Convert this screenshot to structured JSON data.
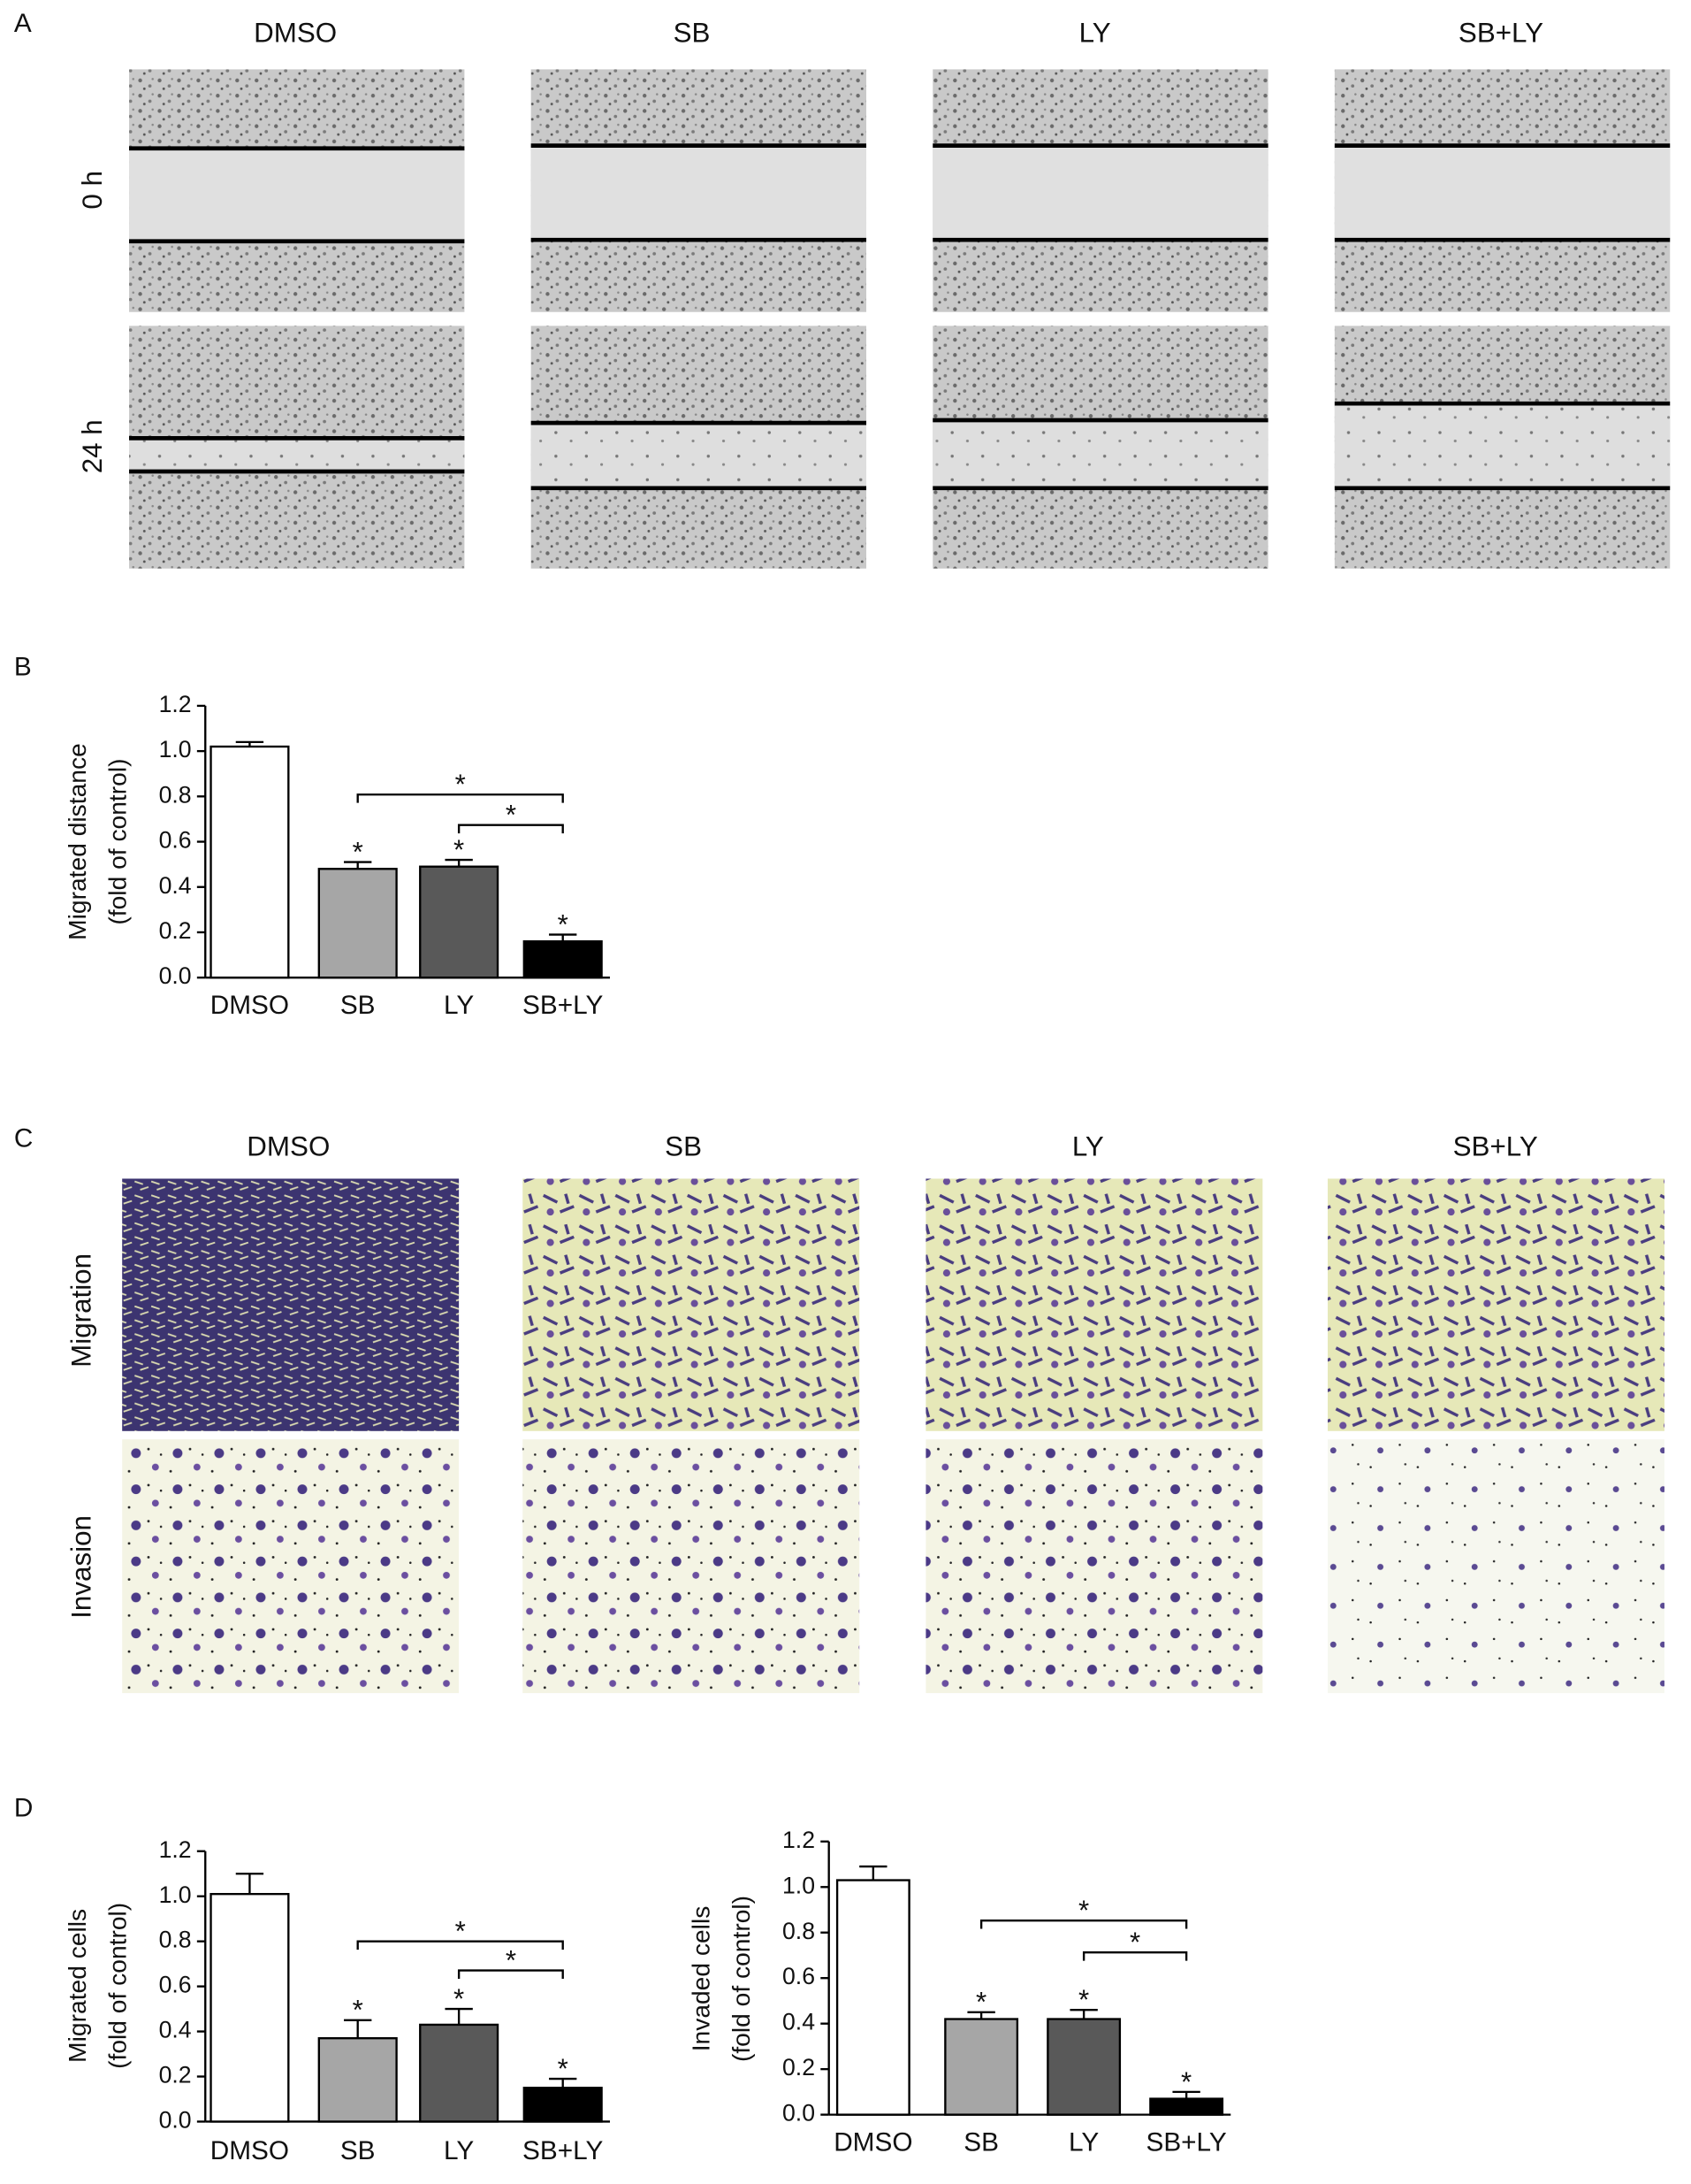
{
  "panels": [
    "A",
    "B",
    "C",
    "D"
  ],
  "wound": {
    "columns": [
      "DMSO",
      "SB",
      "LY",
      "SB+LY"
    ],
    "rows": [
      "0 h",
      "24 h"
    ]
  },
  "transwell": {
    "columns": [
      "DMSO",
      "SB",
      "LY",
      "SB+LY"
    ],
    "rows": [
      "Migration",
      "Invasion"
    ]
  },
  "chart_data": [
    {
      "type": "bar",
      "ylabel": [
        "Migrated distance",
        "(fold of control)"
      ],
      "categories": [
        "DMSO",
        "SB",
        "LY",
        "SB+LY"
      ],
      "values": [
        1.02,
        0.48,
        0.49,
        0.16
      ],
      "errors": [
        0.02,
        0.03,
        0.03,
        0.03
      ],
      "colors": [
        "#ffffff",
        "#a6a6a6",
        "#595959",
        "#000000"
      ],
      "bar_labels": [
        null,
        "*",
        "*",
        "*"
      ],
      "comparison_labels": [
        "*",
        "*"
      ],
      "ylim": [
        0,
        1.2
      ],
      "yticks": [
        {
          "value": 0,
          "label": "0.0"
        },
        {
          "value": 0.2,
          "label": "0.2"
        },
        {
          "value": 0.4,
          "label": "0.4"
        },
        {
          "value": 0.6,
          "label": "0.6"
        },
        {
          "value": 0.8,
          "label": "0.8"
        },
        {
          "value": 1,
          "label": "1.0"
        },
        {
          "value": 1.2,
          "label": "1.2"
        }
      ]
    },
    {
      "type": "bar",
      "ylabel": [
        "Migrated cells",
        "(fold of control)"
      ],
      "categories": [
        "DMSO",
        "SB",
        "LY",
        "SB+LY"
      ],
      "values": [
        1.01,
        0.37,
        0.43,
        0.15
      ],
      "errors": [
        0.09,
        0.08,
        0.07,
        0.04
      ],
      "colors": [
        "#ffffff",
        "#a6a6a6",
        "#595959",
        "#000000"
      ],
      "bar_labels": [
        null,
        "*",
        "*",
        "*"
      ],
      "comparison_labels": [
        "*",
        "*"
      ],
      "ylim": [
        0,
        1.2
      ],
      "yticks": [
        {
          "value": 0,
          "label": "0.0"
        },
        {
          "value": 0.2,
          "label": "0.2"
        },
        {
          "value": 0.4,
          "label": "0.4"
        },
        {
          "value": 0.6,
          "label": "0.6"
        },
        {
          "value": 0.8,
          "label": "0.8"
        },
        {
          "value": 1,
          "label": "1.0"
        },
        {
          "value": 1.2,
          "label": "1.2"
        }
      ]
    },
    {
      "type": "bar",
      "ylabel": [
        "Invaded cells",
        "(fold of control)"
      ],
      "categories": [
        "DMSO",
        "SB",
        "LY",
        "SB+LY"
      ],
      "values": [
        1.03,
        0.42,
        0.42,
        0.07
      ],
      "errors": [
        0.06,
        0.03,
        0.04,
        0.03
      ],
      "colors": [
        "#ffffff",
        "#a6a6a6",
        "#595959",
        "#000000"
      ],
      "bar_labels": [
        null,
        "*",
        "*",
        "*"
      ],
      "comparison_labels": [
        "*",
        "*"
      ],
      "ylim": [
        0,
        1.2
      ],
      "yticks": [
        {
          "value": 0,
          "label": "0.0"
        },
        {
          "value": 0.2,
          "label": "0.2"
        },
        {
          "value": 0.4,
          "label": "0.4"
        },
        {
          "value": 0.6,
          "label": "0.6"
        },
        {
          "value": 0.8,
          "label": "0.8"
        },
        {
          "value": 1,
          "label": "1.0"
        },
        {
          "value": 1.2,
          "label": "1.2"
        }
      ]
    }
  ]
}
